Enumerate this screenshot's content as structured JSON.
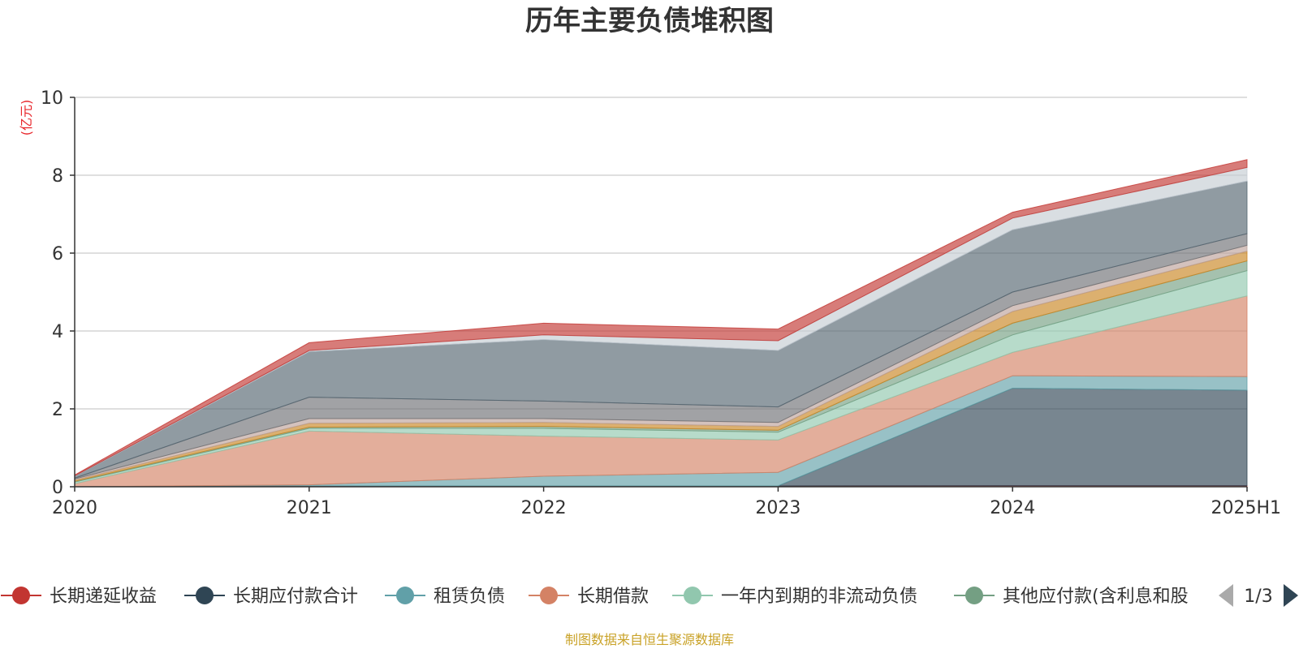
{
  "chart_data": {
    "type": "area",
    "stacked": true,
    "title": "历年主要负债堆积图",
    "unit_label": "(亿元)",
    "x": [
      "2020",
      "2021",
      "2022",
      "2023",
      "2024",
      "2025H1"
    ],
    "ylim": [
      0,
      10
    ],
    "yticks": [
      0,
      2,
      4,
      6,
      8,
      10
    ],
    "grid": true,
    "legend_position": "bottom",
    "series": [
      {
        "name": "长期递延收益",
        "color": "#c23531",
        "values": [
          0.0,
          0.02,
          0.02,
          0.02,
          0.03,
          0.03
        ]
      },
      {
        "name": "长期应付款合计",
        "color": "#2f4554",
        "values": [
          0.0,
          0.0,
          0.0,
          0.0,
          2.5,
          2.45
        ]
      },
      {
        "name": "租赁负债",
        "color": "#61a0a8",
        "values": [
          0.0,
          0.03,
          0.25,
          0.35,
          0.32,
          0.35
        ]
      },
      {
        "name": "长期借款",
        "color": "#d48265",
        "values": [
          0.08,
          1.38,
          1.03,
          0.83,
          0.6,
          2.07
        ]
      },
      {
        "name": "一年内到期的非流动负债",
        "color": "#91c7ae",
        "values": [
          0.04,
          0.07,
          0.2,
          0.2,
          0.45,
          0.65
        ]
      },
      {
        "name": "其他应付款(含利息和股",
        "color": "#749f83",
        "values": [
          0.02,
          0.03,
          0.05,
          0.05,
          0.3,
          0.25
        ]
      },
      {
        "name": "",
        "color": "#ca8622",
        "values": [
          0.03,
          0.1,
          0.1,
          0.1,
          0.3,
          0.25
        ]
      },
      {
        "name": "",
        "color": "#bda29a",
        "values": [
          0.03,
          0.12,
          0.1,
          0.1,
          0.15,
          0.15
        ]
      },
      {
        "name": "",
        "color": "#6e7074",
        "values": [
          0.02,
          0.55,
          0.45,
          0.4,
          0.35,
          0.3
        ]
      },
      {
        "name": "",
        "color": "#546570",
        "values": [
          0.05,
          1.17,
          1.58,
          1.45,
          1.6,
          1.35
        ]
      },
      {
        "name": "",
        "color": "#c4ccd3",
        "values": [
          0.01,
          0.03,
          0.12,
          0.25,
          0.3,
          0.35
        ]
      },
      {
        "name": "",
        "color": "#c23531",
        "values": [
          0.02,
          0.2,
          0.3,
          0.3,
          0.15,
          0.2
        ]
      }
    ]
  },
  "legend": {
    "visible_count": 6,
    "page_label": "1/3",
    "prev_icon": "triangle-left-icon",
    "next_icon": "triangle-right-icon"
  },
  "source_text": "制图数据来自恒生聚源数据库"
}
